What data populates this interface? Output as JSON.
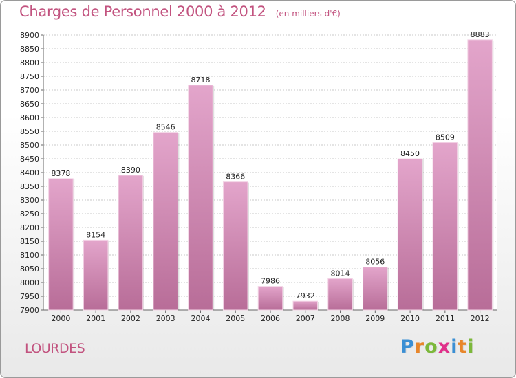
{
  "header": {
    "title": "Charges de Personnel 2000 à 2012",
    "subtitle": "(en milliers d'€)"
  },
  "footer": {
    "city": "LOURDES",
    "logo_letters": [
      {
        "char": "P",
        "color": "#3a8fd4"
      },
      {
        "char": "r",
        "color": "#e8862a"
      },
      {
        "char": "o",
        "color": "#7cb83a"
      },
      {
        "char": "x",
        "color": "#e0308a"
      },
      {
        "char": "i",
        "color": "#3a8fd4"
      },
      {
        "char": "t",
        "color": "#e8862a"
      },
      {
        "char": "i",
        "color": "#7cb83a"
      }
    ]
  },
  "chart_data": {
    "type": "bar",
    "title": "Charges de Personnel 2000 à 2012",
    "subtitle": "(en milliers d'€)",
    "categories": [
      "2000",
      "2001",
      "2002",
      "2003",
      "2004",
      "2005",
      "2006",
      "2007",
      "2008",
      "2009",
      "2010",
      "2011",
      "2012"
    ],
    "values": [
      8378,
      8154,
      8390,
      8546,
      8718,
      8366,
      7986,
      7932,
      8014,
      8056,
      8450,
      8509,
      8883
    ],
    "ylim": [
      7900,
      8900
    ],
    "ytick_step": 50,
    "grid": true,
    "bar_color": "#d889b6"
  }
}
